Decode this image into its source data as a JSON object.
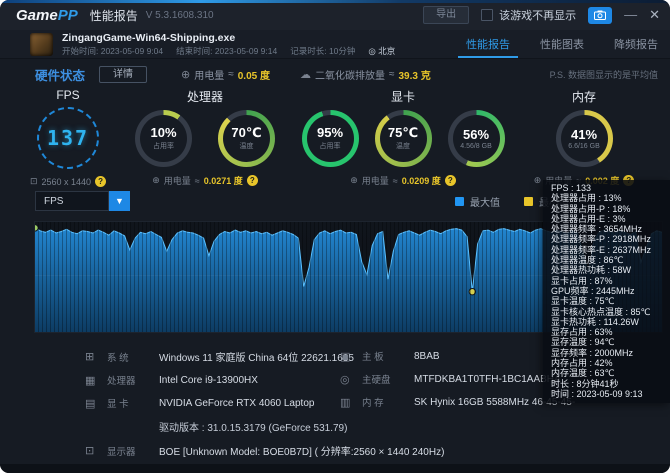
{
  "titlebar": {
    "logo_game": "Game",
    "logo_pp": "PP",
    "app_title": "性能报告",
    "version": "V 5.3.1608.310",
    "export_label": "导出",
    "hide_game_label": "该游戏不再显示",
    "minimize_glyph": "—",
    "close_glyph": "✕"
  },
  "header": {
    "exe_name": "ZingangGame-Win64-Shipping.exe",
    "start_time": "开始时间: 2023-05-09 9:04",
    "end_time": "结束时间: 2023-05-09 9:14",
    "duration": "记录时长: 10分钟",
    "location_icon": "◎",
    "location": "北京",
    "tabs": [
      {
        "label": "性能报告"
      },
      {
        "label": "性能图表"
      },
      {
        "label": "降频报告"
      }
    ]
  },
  "statusbar": {
    "hw_label": "硬件状态",
    "detail_label": "详情",
    "power_icon": "⊕",
    "power_label": "用电量",
    "approx": "≈",
    "power_value": "0.05 度",
    "co2_icon": "☁",
    "co2_label": "二氧化碳排放量",
    "co2_value": "39.3 克",
    "ps_note": "P.S. 数据图显示的是平均值"
  },
  "gauges": {
    "fps": {
      "title": "FPS",
      "value": "137",
      "res_icon": "⊡",
      "resolution": "2560 x 1440",
      "help": "?"
    },
    "cpu": {
      "title": "处理器",
      "rings": [
        {
          "value": "10%",
          "label": "占用率",
          "pct": 10,
          "c1": "#b9cc4e",
          "c2": "#b9cc4e"
        },
        {
          "value": "70℃",
          "label": "温度",
          "pct": 88,
          "c1": "#3fa24f",
          "c2": "#e0d44e"
        }
      ],
      "power_label": "用电量",
      "power_value": "0.0271 度",
      "help": "?"
    },
    "gpu": {
      "title": "显卡",
      "rings": [
        {
          "value": "95%",
          "label": "占用率",
          "pct": 95,
          "c1": "#27c46d",
          "c2": "#27c46d"
        },
        {
          "value": "75℃",
          "label": "温度",
          "pct": 90,
          "c1": "#3fa24f",
          "c2": "#d8ce4a"
        },
        {
          "value": "56%",
          "label": "4.56/8 GB",
          "pct": 56,
          "c1": "#2eb869",
          "c2": "#a5c94f"
        }
      ],
      "power_label": "用电量",
      "power_value": "0.0209 度",
      "help": "?"
    },
    "ram": {
      "title": "内存",
      "rings": [
        {
          "value": "41%",
          "label": "6.6/16 GB",
          "pct": 41,
          "c1": "#d8c84a",
          "c2": "#d8c84a"
        }
      ],
      "power_label": "用电量",
      "power_value": "0.002 度",
      "help": "?"
    }
  },
  "chart_controls": {
    "metric_selected": "FPS",
    "dropdown_glyph": "▼"
  },
  "chart_data": {
    "type": "area",
    "series_name": "FPS",
    "x_desc": "记录时长 10分钟",
    "ylim": [
      0,
      150
    ],
    "values": [
      142,
      138,
      136,
      139,
      135,
      137,
      140,
      136,
      134,
      138,
      137,
      135,
      139,
      136,
      132,
      138,
      135,
      131,
      112,
      128,
      136,
      134,
      137,
      133,
      129,
      110,
      126,
      135,
      138,
      136,
      135,
      132,
      128,
      104,
      124,
      133,
      137,
      135,
      139,
      136,
      138,
      135,
      137,
      134,
      136,
      132,
      135,
      138,
      136,
      133,
      128,
      62,
      88,
      126,
      135,
      138,
      134,
      137,
      139,
      135,
      136,
      133,
      96,
      78,
      118,
      134,
      137,
      72,
      110,
      133,
      136,
      138,
      135,
      132,
      136,
      139,
      137,
      134,
      138,
      140,
      141,
      139,
      130,
      55,
      120,
      138,
      139,
      136,
      140,
      141,
      139,
      137,
      140,
      138,
      135,
      139,
      141,
      138,
      136,
      139,
      137,
      134,
      138,
      135,
      108,
      80,
      122,
      136,
      139,
      137,
      135,
      138,
      136,
      133,
      137,
      95,
      115,
      134,
      138,
      136
    ],
    "legend": [
      {
        "label": "最大值",
        "color": "#2196f3"
      },
      {
        "label": "最小值",
        "color": "#e8c52a"
      }
    ],
    "max_marker_color": "#9ccc65",
    "min_marker_color": "#d4cf4f",
    "area_color_top": "#2285cf",
    "area_color_bottom": "#0d3c63",
    "line_color": "#5bc0ff"
  },
  "tooltip": {
    "lines": [
      "FPS : 133",
      "处理器占用 : 13%",
      "处理器占用-P : 18%",
      "处理器占用-E : 3%",
      "处理器频率 : 3654MHz",
      "处理器频率-P : 2918MHz",
      "处理器频率-E : 2637MHz",
      "处理器温度 : 86℃",
      "处理器热功耗 : 58W",
      "显卡占用 : 87%",
      "GPU频率 : 2445MHz",
      "显卡温度 : 75℃",
      "显卡核心热点温度 : 85℃",
      "显卡热功耗 : 114.26W",
      "显存占用 : 63%",
      "显存温度 : 94℃",
      "显存频率 : 2000MHz",
      "内存占用 : 42%",
      "内存温度 : 63℃",
      "时长 : 8分钟41秒",
      "时间 : 2023-05-09 9:13"
    ]
  },
  "specs": {
    "left": [
      {
        "icon": "⊞",
        "label": "系 统",
        "value": "Windows 11 家庭版 China 64位 22621.1635"
      },
      {
        "icon": "▦",
        "label": "处理器",
        "value": "Intel Core i9-13900HX"
      },
      {
        "icon": "▤",
        "label": "显 卡",
        "value": "NVIDIA GeForce RTX 4060 Laptop"
      }
    ],
    "driver": "驱动版本 : 31.0.15.3179 (GeForce 531.79)",
    "monitor": {
      "icon": "⊡",
      "label": "显示器",
      "value": "BOE [Unknown Model: BOE0B7D] ( 分辨率:2560 × 1440 240Hz)"
    },
    "right": [
      {
        "icon": "▣",
        "label": "主 板",
        "value": "8BAB"
      },
      {
        "icon": "◎",
        "label": "主硬盘",
        "value": "MTFDKBA1T0TFH-1BC1AABHA"
      },
      {
        "icon": "▥",
        "label": "内 存",
        "value": "SK Hynix 16GB 5588MHz 46-45-45-"
      }
    ]
  }
}
